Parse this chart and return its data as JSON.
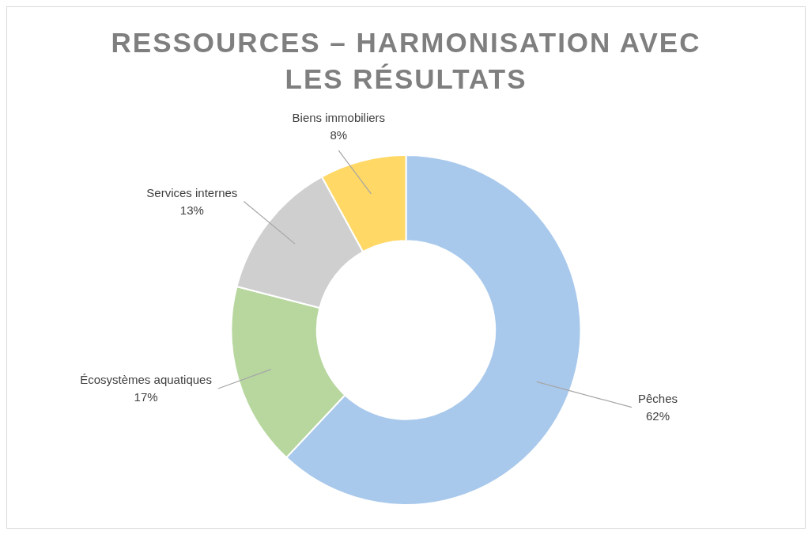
{
  "chart_data": {
    "type": "donut",
    "title": "RESSOURCES – HARMONISATION AVEC LES RÉSULTATS",
    "categories": [
      "Pêches",
      "Écosystèmes aquatiques",
      "Services internes",
      "Biens immobiliers"
    ],
    "values": [
      62,
      17,
      13,
      8
    ],
    "colors": [
      "#a9c9ec",
      "#b7d79f",
      "#cfcfcf",
      "#ffd866"
    ],
    "value_labels": [
      "62%",
      "17%",
      "13%",
      "8%"
    ]
  }
}
